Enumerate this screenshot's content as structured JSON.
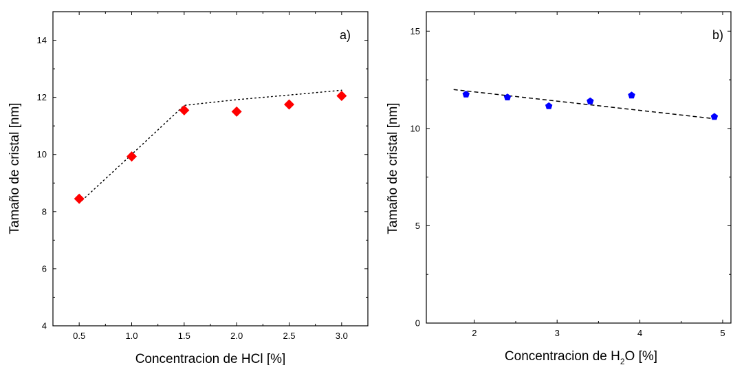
{
  "chart_data": [
    {
      "type": "scatter",
      "panel_label": "a)",
      "xlabel": "Concentracion de HCl  [%]",
      "ylabel": "Tamaño de cristal [nm]",
      "xlim": [
        0.25,
        3.25
      ],
      "ylim": [
        4,
        15
      ],
      "xticks": [
        0.5,
        1.0,
        1.5,
        2.0,
        2.5,
        3.0
      ],
      "xtick_labels": [
        "0.5",
        "1.0",
        "1.5",
        "2.0",
        "2.5",
        "3.0"
      ],
      "yticks": [
        4,
        6,
        8,
        10,
        12,
        14
      ],
      "ytick_labels": [
        "4",
        "6",
        "8",
        "10",
        "12",
        "14"
      ],
      "grid": false,
      "series": [
        {
          "marker": "diamond",
          "color": "#ff0000",
          "x": [
            0.5,
            1.0,
            1.5,
            2.0,
            2.5,
            3.0
          ],
          "y": [
            8.45,
            9.93,
            11.55,
            11.5,
            11.75,
            12.05
          ]
        }
      ],
      "fit_line": {
        "style": "dotted",
        "color": "#000000",
        "x": [
          0.5,
          1.0,
          1.5,
          2.0,
          2.5,
          3.0
        ],
        "y": [
          8.3,
          10.0,
          11.72,
          11.92,
          12.08,
          12.25
        ]
      }
    },
    {
      "type": "scatter",
      "panel_label": "b)",
      "xlabel_main": "Concentracion de H",
      "xlabel_sub": "2",
      "xlabel_tail": "O  [%]",
      "ylabel": "Tamaño de cristal [nm]",
      "xlim": [
        1.42,
        5.1
      ],
      "ylim": [
        0,
        16
      ],
      "xticks": [
        2,
        3,
        4,
        5
      ],
      "xtick_labels": [
        "2",
        "3",
        "4",
        "5"
      ],
      "yticks": [
        0,
        5,
        10,
        15
      ],
      "ytick_labels": [
        "0",
        "5",
        "10",
        "15"
      ],
      "grid": false,
      "series": [
        {
          "marker": "pentagon",
          "color": "#0000ff",
          "x": [
            1.9,
            2.4,
            2.9,
            3.4,
            3.9,
            4.9
          ],
          "y": [
            11.75,
            11.6,
            11.15,
            11.4,
            11.7,
            10.6
          ]
        }
      ],
      "fit_line": {
        "style": "dashed",
        "color": "#000000",
        "x": [
          1.75,
          4.9
        ],
        "y": [
          12.0,
          10.5
        ]
      }
    }
  ]
}
